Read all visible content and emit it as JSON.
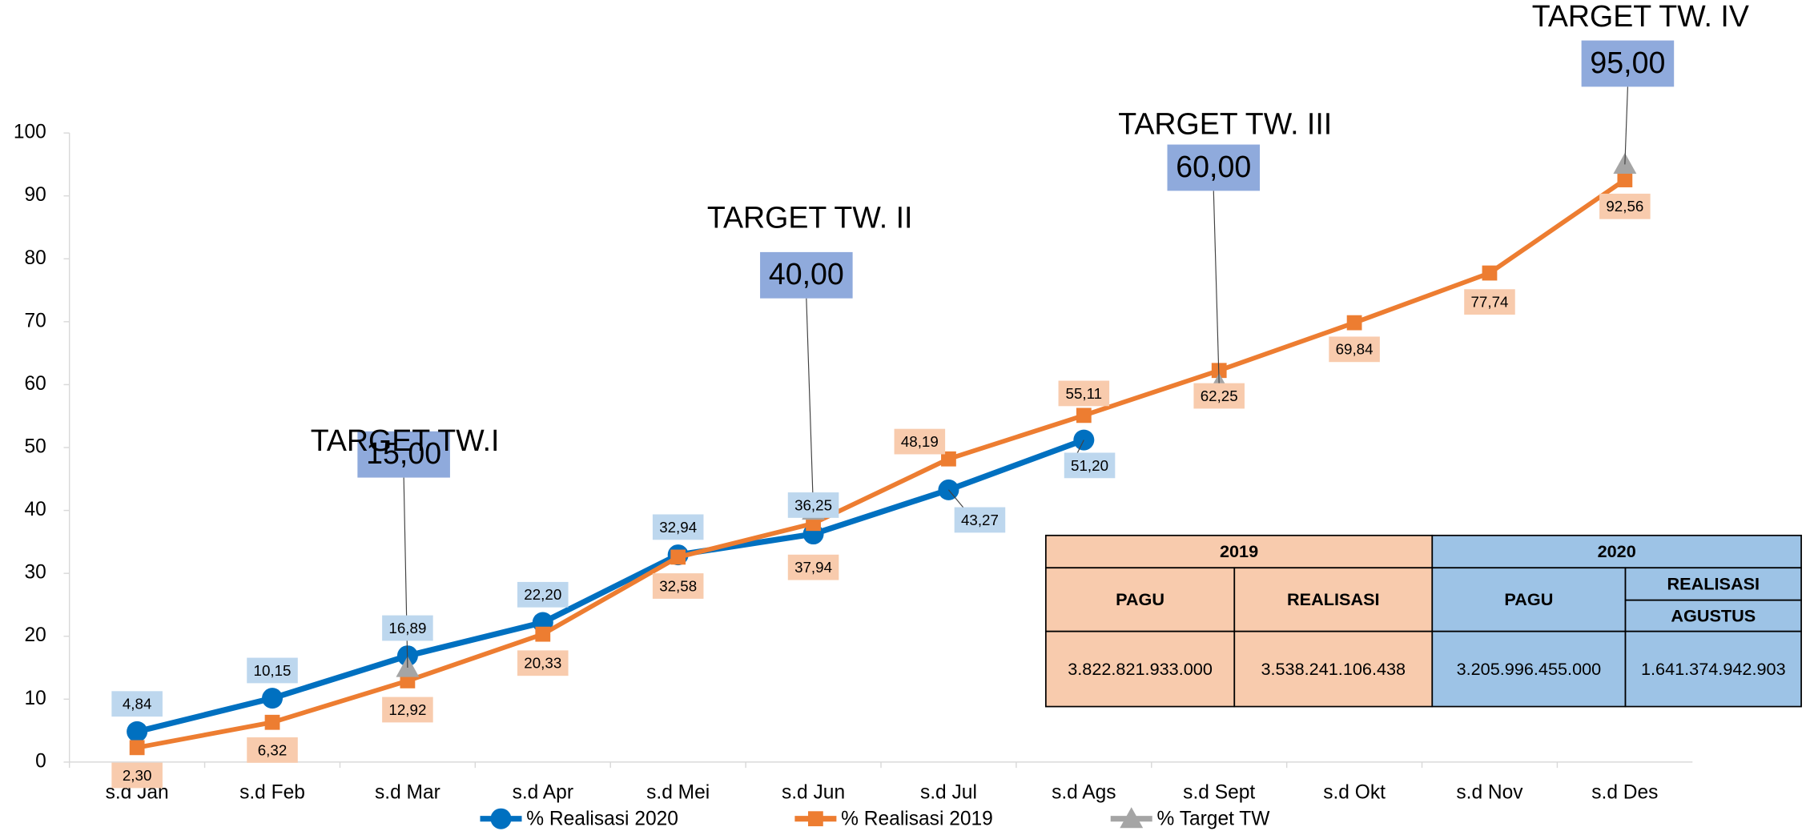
{
  "chart_data": {
    "type": "line",
    "categories": [
      "s.d Jan",
      "s.d Feb",
      "s.d Mar",
      "s.d Apr",
      "s.d Mei",
      "s.d  Jun",
      "s.d Jul",
      "s.d Ags",
      "s.d Sept",
      "s.d Okt",
      "s.d Nov",
      "s.d Des"
    ],
    "series": [
      {
        "name": "% Realisasi 2020",
        "color": "#0070c0",
        "label_color": "#bdd7ee",
        "marker": "circle",
        "values": [
          4.84,
          10.15,
          16.89,
          22.2,
          32.94,
          36.25,
          43.27,
          51.2,
          null,
          null,
          null,
          null
        ],
        "value_labels": [
          "4,84",
          "10,15",
          "16,89",
          "22,20",
          "32,94",
          "36,25",
          "43,27",
          "51,20",
          null,
          null,
          null,
          null
        ]
      },
      {
        "name": "% Realisasi 2019",
        "color": "#ed7d31",
        "label_color": "#f8cbad",
        "marker": "square",
        "values": [
          2.3,
          6.32,
          12.92,
          20.33,
          32.58,
          37.94,
          48.19,
          55.11,
          62.25,
          69.84,
          77.74,
          92.56
        ],
        "value_labels": [
          "2,30",
          "6,32",
          "12,92",
          "20,33",
          "32,58",
          "37,94",
          "48,19",
          "55,11",
          "62,25",
          "69,84",
          "77,74",
          "92,56"
        ]
      },
      {
        "name": "% Target TW",
        "color": "#a5a5a5",
        "label_color": "#8faadc",
        "marker": "triangle",
        "values": [
          null,
          null,
          15,
          null,
          null,
          40,
          null,
          null,
          60,
          null,
          null,
          95
        ],
        "value_labels": [
          null,
          null,
          "15,00",
          null,
          null,
          "40,00",
          null,
          null,
          "60,00",
          null,
          null,
          "95,00"
        ],
        "titles": [
          null,
          null,
          "TARGET TW.I",
          null,
          null,
          "TARGET TW. II",
          null,
          null,
          "TARGET TW. III",
          null,
          null,
          "TARGET TW. IV"
        ]
      }
    ],
    "ylim": [
      0,
      100
    ],
    "yticks": [
      0,
      10,
      20,
      30,
      40,
      50,
      60,
      70,
      80,
      90,
      100
    ],
    "legend": "bottom"
  },
  "table": {
    "header": [
      [
        "2019",
        "2020"
      ],
      [
        "PAGU",
        "REALISASI",
        "PAGU",
        "REALISASI",
        "AGUSTUS"
      ]
    ],
    "rows": [
      [
        "3.822.821.933.000",
        "3.538.241.106.438",
        "3.205.996.455.000",
        "1.641.374.942.903"
      ]
    ]
  }
}
